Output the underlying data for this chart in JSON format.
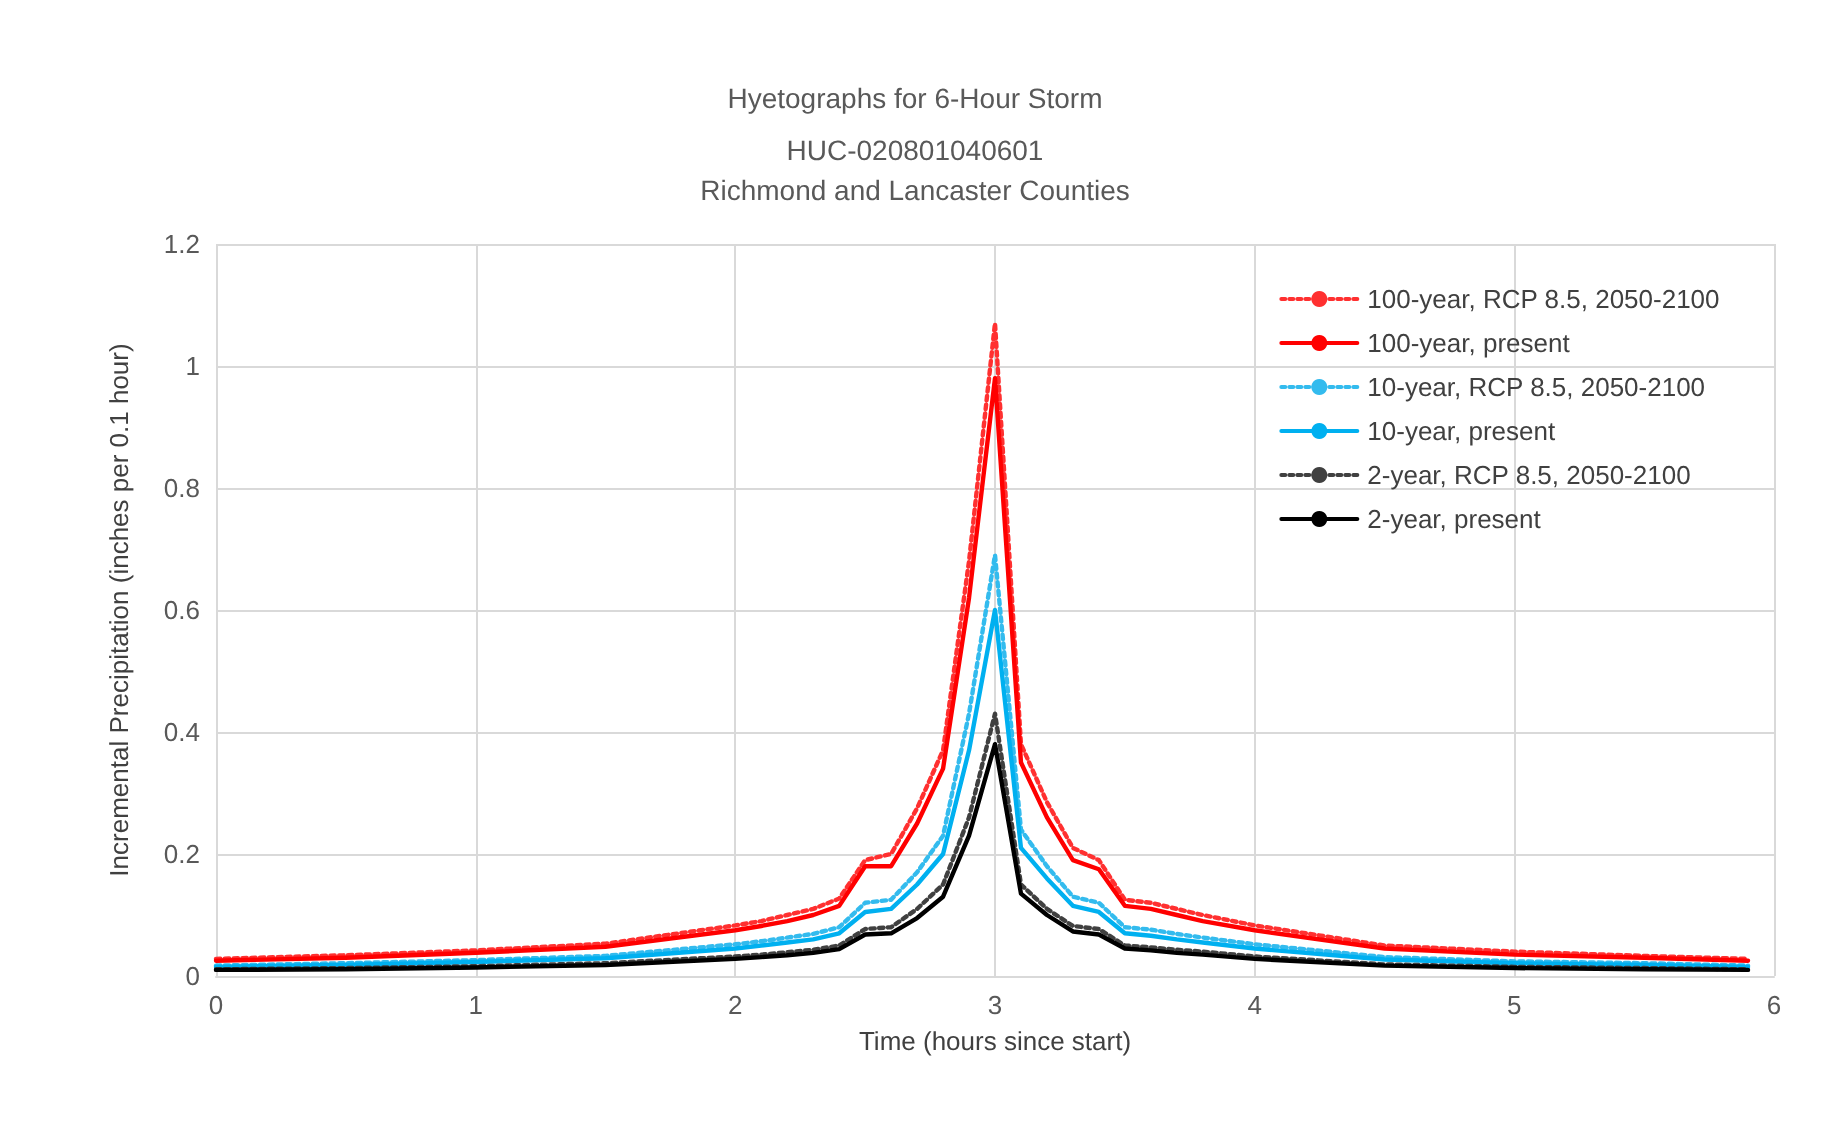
{
  "chart_data": {
    "type": "line",
    "title": "Hyetographs for 6-Hour Storm",
    "subtitle": "HUC-020801040601\nRichmond and Lancaster Counties",
    "xlabel": "Time (hours since start)",
    "ylabel": "Incremental Precipitation (inches per 0.1 hour)",
    "x": [
      0,
      0.5,
      1,
      1.5,
      2,
      2.1,
      2.2,
      2.3,
      2.4,
      2.5,
      2.6,
      2.7,
      2.8,
      2.9,
      3,
      3.1,
      3.2,
      3.3,
      3.4,
      3.5,
      3.6,
      3.7,
      3.8,
      4,
      4.5,
      5,
      5.5,
      5.9
    ],
    "series": [
      {
        "name": "100-year, RCP 8.5, 2050-2100",
        "color": "#ff3030",
        "line_style": "dotted",
        "values": [
          0.028,
          0.034,
          0.042,
          0.053,
          0.083,
          0.09,
          0.1,
          0.11,
          0.127,
          0.19,
          0.2,
          0.275,
          0.37,
          0.68,
          1.07,
          0.38,
          0.285,
          0.21,
          0.19,
          0.125,
          0.12,
          0.11,
          0.1,
          0.083,
          0.05,
          0.04,
          0.033,
          0.028
        ]
      },
      {
        "name": "100-year, present",
        "color": "#ff0000",
        "line_style": "solid",
        "values": [
          0.025,
          0.03,
          0.038,
          0.048,
          0.075,
          0.082,
          0.09,
          0.1,
          0.115,
          0.18,
          0.18,
          0.25,
          0.34,
          0.62,
          0.98,
          0.35,
          0.26,
          0.19,
          0.175,
          0.115,
          0.11,
          0.1,
          0.09,
          0.075,
          0.045,
          0.035,
          0.03,
          0.025
        ]
      },
      {
        "name": "10-year, RCP 8.5, 2050-2100",
        "color": "#33bbee",
        "line_style": "dotted",
        "values": [
          0.017,
          0.021,
          0.026,
          0.033,
          0.052,
          0.057,
          0.063,
          0.069,
          0.08,
          0.12,
          0.125,
          0.17,
          0.23,
          0.43,
          0.69,
          0.24,
          0.18,
          0.13,
          0.12,
          0.08,
          0.076,
          0.069,
          0.063,
          0.052,
          0.031,
          0.024,
          0.021,
          0.017
        ]
      },
      {
        "name": "10-year, present",
        "color": "#00b0f0",
        "line_style": "solid",
        "values": [
          0.015,
          0.018,
          0.023,
          0.029,
          0.045,
          0.05,
          0.055,
          0.06,
          0.07,
          0.105,
          0.11,
          0.15,
          0.2,
          0.37,
          0.6,
          0.21,
          0.16,
          0.115,
          0.105,
          0.07,
          0.066,
          0.06,
          0.055,
          0.045,
          0.027,
          0.021,
          0.018,
          0.015
        ]
      },
      {
        "name": "2-year, RCP 8.5, 2050-2100",
        "color": "#404040",
        "line_style": "dotted",
        "values": [
          0.011,
          0.013,
          0.016,
          0.021,
          0.032,
          0.035,
          0.039,
          0.043,
          0.05,
          0.077,
          0.08,
          0.11,
          0.15,
          0.26,
          0.43,
          0.15,
          0.11,
          0.082,
          0.077,
          0.05,
          0.047,
          0.043,
          0.04,
          0.032,
          0.019,
          0.015,
          0.013,
          0.011
        ]
      },
      {
        "name": "2-year, present",
        "color": "#000000",
        "line_style": "solid",
        "values": [
          0.01,
          0.011,
          0.014,
          0.018,
          0.028,
          0.031,
          0.034,
          0.038,
          0.044,
          0.068,
          0.07,
          0.095,
          0.13,
          0.23,
          0.38,
          0.135,
          0.1,
          0.073,
          0.068,
          0.045,
          0.042,
          0.038,
          0.035,
          0.028,
          0.017,
          0.013,
          0.011,
          0.01
        ]
      }
    ],
    "xlim": [
      0,
      6
    ],
    "xticks": [
      0,
      1,
      2,
      3,
      4,
      5,
      6
    ],
    "ylim": [
      0,
      1.2
    ],
    "yticks": [
      0,
      0.2,
      0.4,
      0.6,
      0.8,
      1,
      1.2
    ],
    "grid": true,
    "legend": "top right",
    "marker": "none"
  }
}
